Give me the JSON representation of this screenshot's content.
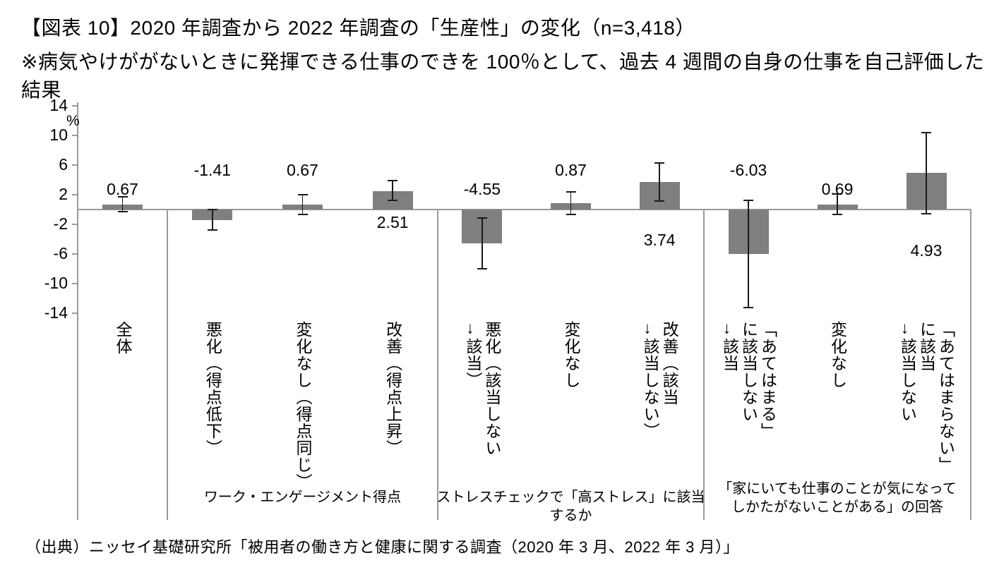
{
  "chart_data": {
    "type": "bar",
    "title": "【図表 10】2020 年調査から 2022 年調査の「生産性」の変化（n=3,418）",
    "subtitle": "※病気やけががないときに発揮できる仕事のできを 100％として、過去 4 週間の自身の仕事を自己評価した結果",
    "unit_label": "%",
    "ylim": [
      -14,
      14
    ],
    "yticks": [
      14,
      10,
      6,
      2,
      -2,
      -6,
      -10,
      -14
    ],
    "grid": false,
    "error_bars": true,
    "bar_color": "#7f7f7f",
    "error_color": "#1a1a1a",
    "axis_color": "#9a9a9a",
    "groups": [
      {
        "label": "",
        "bars": [
          {
            "category_lines": [
              "全体"
            ],
            "value": 0.67,
            "value_label": "0.67",
            "ci": [
              -0.3,
              1.7
            ]
          }
        ]
      },
      {
        "label": "ワーク・エンゲージメント得点",
        "bars": [
          {
            "category_lines": [
              "悪化（得点低下）"
            ],
            "value": -1.41,
            "value_label": "-1.41",
            "ci": [
              -2.8,
              0.0
            ]
          },
          {
            "category_lines": [
              "変化なし（得点同じ）"
            ],
            "value": 0.67,
            "value_label": "0.67",
            "ci": [
              -0.7,
              2.0
            ]
          },
          {
            "category_lines": [
              "改善（得点上昇）"
            ],
            "value": 2.51,
            "value_label": "2.51",
            "ci": [
              1.2,
              3.9
            ]
          }
        ]
      },
      {
        "label": "ストレスチェックで「高ストレス」に該当するか",
        "bars": [
          {
            "category_lines": [
              "悪化（該当しない",
              "→該当）"
            ],
            "value": -4.55,
            "value_label": "-4.55",
            "ci": [
              -8.0,
              -1.1
            ]
          },
          {
            "category_lines": [
              "変化なし"
            ],
            "value": 0.87,
            "value_label": "0.87",
            "ci": [
              -0.7,
              2.4
            ]
          },
          {
            "category_lines": [
              "改善（該当",
              "→該当しない）"
            ],
            "value": 3.74,
            "value_label": "3.74",
            "ci": [
              1.1,
              6.3
            ]
          }
        ]
      },
      {
        "label": "「家にいても仕事のことが気になって\nしかたがないことがある」の回答",
        "bars": [
          {
            "category_lines": [
              "「あてはまる」",
              "に該当しない",
              "→該当"
            ],
            "value": -6.03,
            "value_label": "-6.03",
            "ci": [
              -13.2,
              1.2
            ]
          },
          {
            "category_lines": [
              "変化なし"
            ],
            "value": 0.69,
            "value_label": "0.69",
            "ci": [
              -0.7,
              2.1
            ]
          },
          {
            "category_lines": [
              "「あてはまらない」",
              "に該当",
              "→該当しない"
            ],
            "value": 4.93,
            "value_label": "4.93",
            "ci": [
              -0.6,
              10.4
            ]
          }
        ]
      }
    ]
  },
  "footer": {
    "source": "（出典）ニッセイ基礎研究所「被用者の働き方と健康に関する調査（2020 年 3 月、2022 年 3 月）」"
  }
}
